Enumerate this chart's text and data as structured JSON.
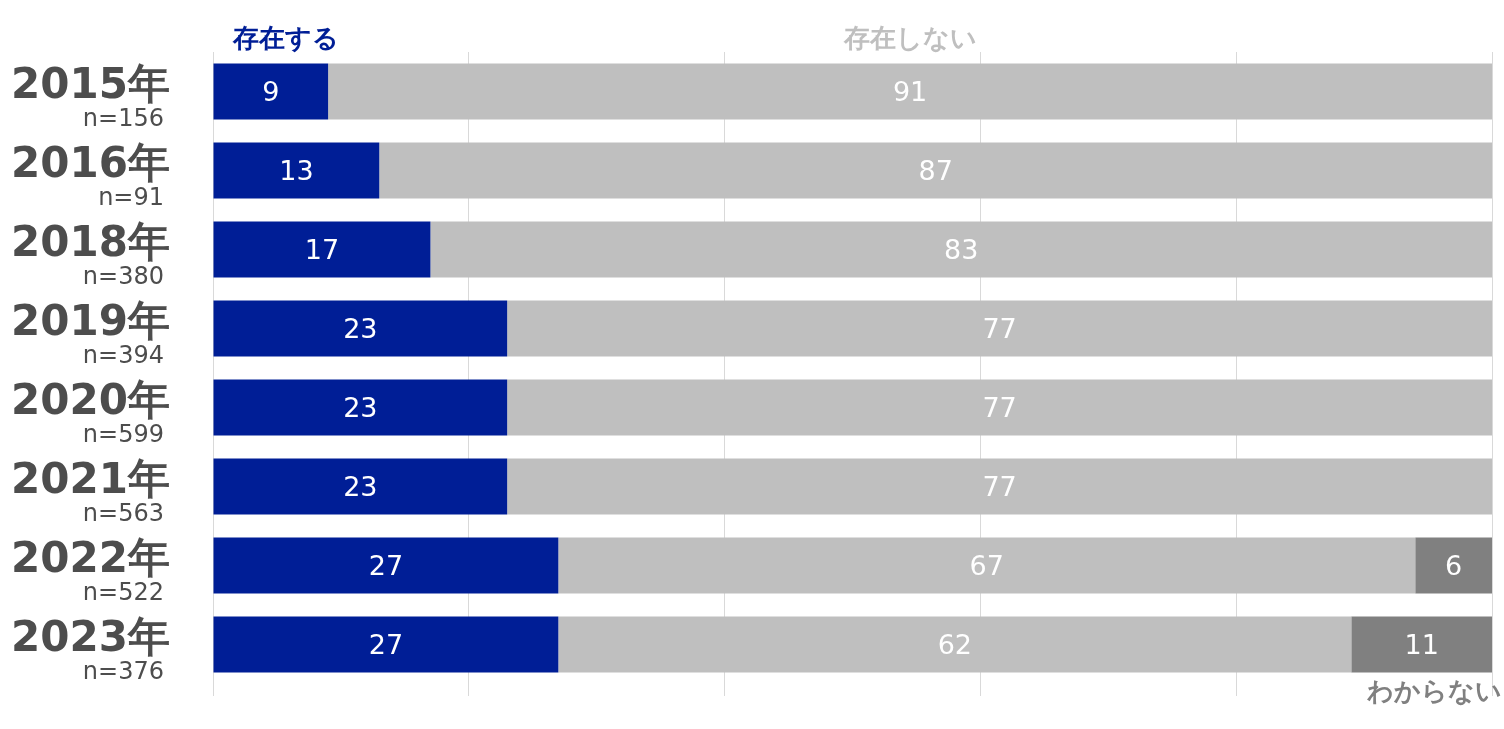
{
  "chart_data": {
    "type": "bar",
    "orientation": "horizontal",
    "stacked": true,
    "categories": [
      "2015年\nn=156",
      "2016年\nn=91",
      "2018年\nn=380",
      "2019年\nn=394",
      "2020年\nn=599",
      "2021年\nn=563",
      "2022年\nn=522",
      "2023年\nn=376"
    ],
    "series": [
      {
        "name": "存在する",
        "color": "#001e96",
        "values": [
          9,
          13,
          17,
          23,
          23,
          23,
          27,
          27
        ]
      },
      {
        "name": "存在しない",
        "color": "#bfbfbf",
        "values": [
          91,
          87,
          83,
          77,
          77,
          77,
          67,
          62
        ]
      },
      {
        "name": "わからない",
        "color": "#808080",
        "values": [
          null,
          null,
          null,
          null,
          null,
          null,
          6,
          11
        ]
      }
    ],
    "xlim": [
      0,
      100
    ],
    "xticks": [
      {
        "value": 0,
        "label": null
      },
      {
        "value": 20,
        "label": null
      },
      {
        "value": 40,
        "label": null
      },
      {
        "value": 60,
        "label": null
      },
      {
        "value": 80,
        "label": null
      },
      {
        "value": 100,
        "label": null
      }
    ],
    "grid": "x",
    "tick_labels": "y",
    "legend": false,
    "data_labels": true
  }
}
